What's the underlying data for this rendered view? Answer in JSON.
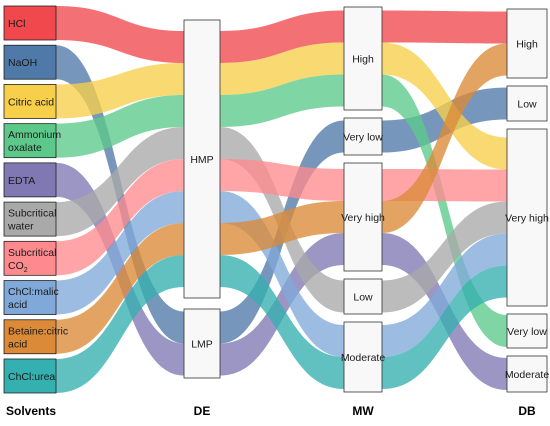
{
  "axes": [
    {
      "id": "solvents",
      "label": "Solvents"
    },
    {
      "id": "de",
      "label": "DE"
    },
    {
      "id": "mw",
      "label": "MW"
    },
    {
      "id": "db",
      "label": "DB"
    }
  ],
  "solvents": [
    {
      "id": "hcl",
      "lines": [
        "HCl"
      ],
      "color": "#f0484d"
    },
    {
      "id": "naoh",
      "lines": [
        "NaOH"
      ],
      "color": "#4f79a8"
    },
    {
      "id": "citric",
      "lines": [
        "Citric acid"
      ],
      "color": "#f7cf4a"
    },
    {
      "id": "ammonium",
      "lines": [
        "Ammonium",
        "oxalate"
      ],
      "color": "#5cc98a"
    },
    {
      "id": "edta",
      "lines": [
        "EDTA"
      ],
      "color": "#7f78b2"
    },
    {
      "id": "subwater",
      "lines": [
        "Subcritical",
        "water"
      ],
      "color": "#a9a9a9"
    },
    {
      "id": "subco2",
      "lines": [
        "Subcritical",
        "CO"
      ],
      "sub": "2",
      "color": "#ff8a8e"
    },
    {
      "id": "malic",
      "lines": [
        "ChCl:malic",
        "acid"
      ],
      "color": "#80a9d9"
    },
    {
      "id": "betaine",
      "lines": [
        "Betaine:citric",
        "acid"
      ],
      "color": "#db8a37"
    },
    {
      "id": "urea",
      "lines": [
        "ChCl:urea"
      ],
      "color": "#35b0b0"
    }
  ],
  "de_nodes": [
    {
      "id": "hmp",
      "label": "HMP"
    },
    {
      "id": "lmp",
      "label": "LMP"
    }
  ],
  "mw_nodes": [
    {
      "id": "high",
      "label": "High"
    },
    {
      "id": "verylow",
      "label": "Very low"
    },
    {
      "id": "veryhigh",
      "label": "Very high"
    },
    {
      "id": "low",
      "label": "Low"
    },
    {
      "id": "moderate",
      "label": "Moderate"
    }
  ],
  "db_nodes": [
    {
      "id": "high",
      "label": "High"
    },
    {
      "id": "low",
      "label": "Low"
    },
    {
      "id": "veryhigh",
      "label": "Very high"
    },
    {
      "id": "verylow",
      "label": "Very low"
    },
    {
      "id": "moderate",
      "label": "Moderate"
    }
  ],
  "flows": [
    {
      "solvent": "hcl",
      "de": "hmp",
      "mw": "high",
      "db": "high"
    },
    {
      "solvent": "naoh",
      "de": "lmp",
      "mw": "verylow",
      "db": "low"
    },
    {
      "solvent": "citric",
      "de": "hmp",
      "mw": "high",
      "db": "veryhigh"
    },
    {
      "solvent": "ammonium",
      "de": "hmp",
      "mw": "high",
      "db": "verylow"
    },
    {
      "solvent": "edta",
      "de": "lmp",
      "mw": "veryhigh",
      "db": "moderate"
    },
    {
      "solvent": "subwater",
      "de": "hmp",
      "mw": "low",
      "db": "veryhigh"
    },
    {
      "solvent": "subco2",
      "de": "hmp",
      "mw": "veryhigh",
      "db": "veryhigh"
    },
    {
      "solvent": "malic",
      "de": "hmp",
      "mw": "moderate",
      "db": "veryhigh"
    },
    {
      "solvent": "betaine",
      "de": "hmp",
      "mw": "veryhigh",
      "db": "high"
    },
    {
      "solvent": "urea",
      "de": "hmp",
      "mw": "moderate",
      "db": "veryhigh"
    }
  ]
}
